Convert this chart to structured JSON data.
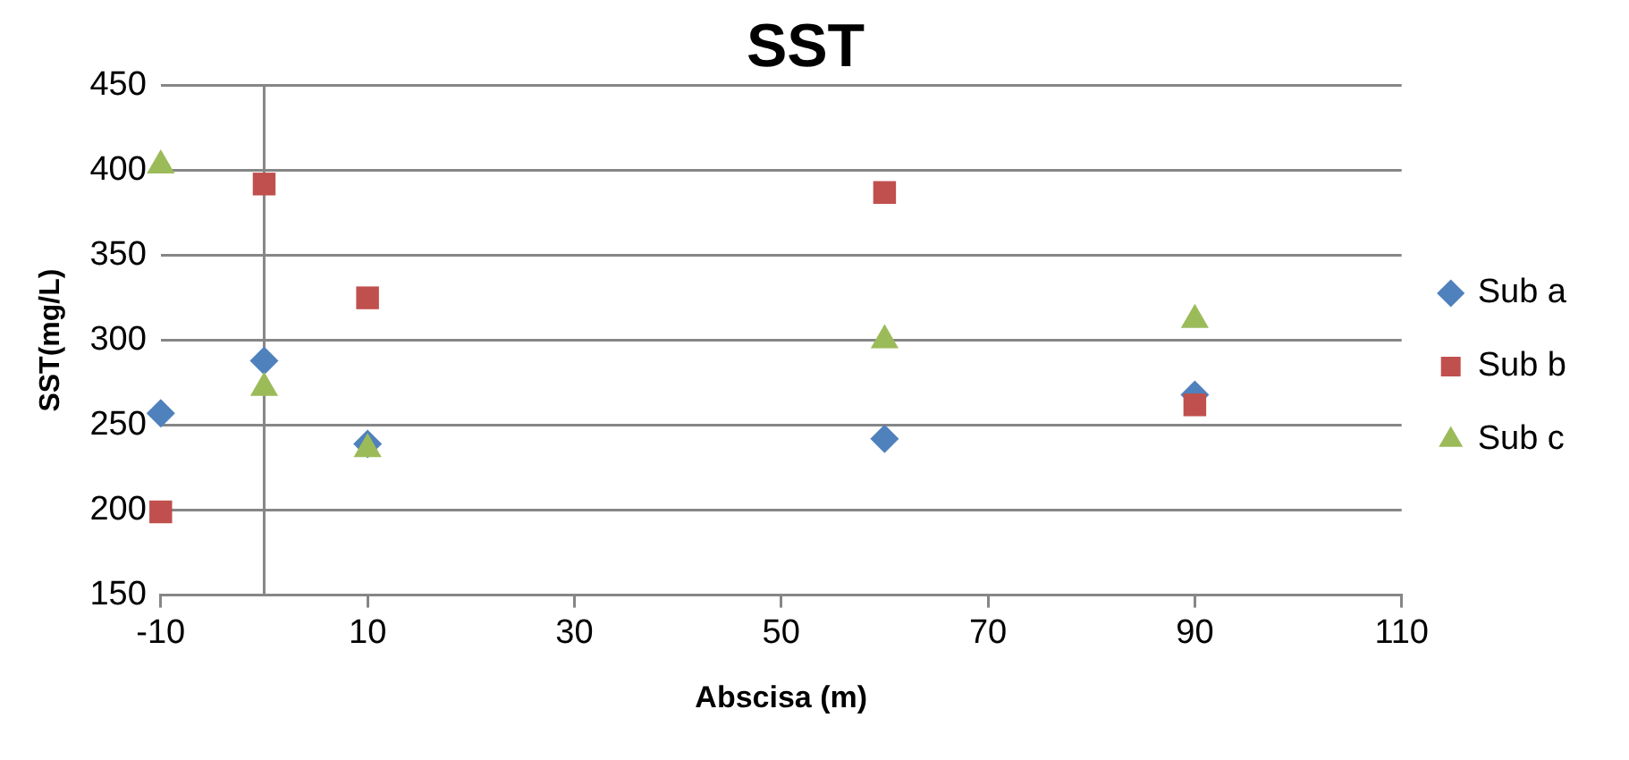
{
  "chart_data": {
    "type": "scatter",
    "title": "SST",
    "xlabel": "Abscisa (m)",
    "ylabel": "SST(mg/L)",
    "x": [
      -10,
      0,
      10,
      60,
      90
    ],
    "series": [
      {
        "name": "Sub a",
        "color": "#4f81bd",
        "marker": "diamond",
        "values": [
          257,
          288,
          239,
          242,
          268
        ]
      },
      {
        "name": "Sub b",
        "color": "#c0504d",
        "marker": "square",
        "values": [
          199,
          392,
          325,
          387,
          262
        ]
      },
      {
        "name": "Sub c",
        "color": "#9bbb59",
        "marker": "triangle",
        "values": [
          403,
          272,
          236,
          300,
          312
        ]
      }
    ],
    "xlim": [
      -10,
      110
    ],
    "xticks": [
      -10,
      10,
      30,
      50,
      70,
      90,
      110
    ],
    "ylim": [
      150,
      450
    ],
    "yticks": [
      150,
      200,
      250,
      300,
      350,
      400,
      450
    ],
    "ref_lines": [
      {
        "axis": "x",
        "value": 0,
        "color": "#868686"
      }
    ],
    "grid": "y",
    "legend": "right"
  }
}
